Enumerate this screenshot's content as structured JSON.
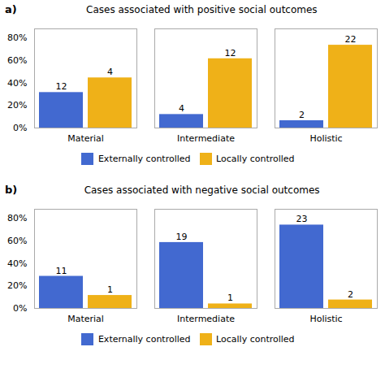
{
  "chart_data": [
    {
      "type": "bar",
      "title": "Cases associated with positive social outcomes",
      "annotations": [
        "a)"
      ],
      "categories": [
        "Material",
        "Intermediate",
        "Holistic"
      ],
      "series": [
        {
          "name": "Externally controlled",
          "values": [
            0.315,
            0.12,
            0.065
          ],
          "counts": [
            12,
            4,
            2
          ]
        },
        {
          "name": "Locally controlled",
          "values": [
            0.445,
            0.615,
            0.735
          ],
          "counts": [
            4,
            12,
            22
          ]
        }
      ],
      "ylim": [
        0,
        0.88
      ],
      "yticks": [
        {
          "value": 0,
          "label": "0%"
        },
        {
          "value": 0.2,
          "label": "20%"
        },
        {
          "value": 0.4,
          "label": "40%"
        },
        {
          "value": 0.6,
          "label": "60%"
        },
        {
          "value": 0.8,
          "label": "80%"
        }
      ],
      "grid": false,
      "legend": "bottom"
    },
    {
      "type": "bar",
      "title": "Cases associated with negative social outcomes",
      "annotations": [
        "b)"
      ],
      "categories": [
        "Material",
        "Intermediate",
        "Holistic"
      ],
      "series": [
        {
          "name": "Externally controlled",
          "values": [
            0.285,
            0.585,
            0.74
          ],
          "counts": [
            11,
            19,
            23
          ]
        },
        {
          "name": "Locally controlled",
          "values": [
            0.115,
            0.04,
            0.075
          ],
          "counts": [
            1,
            1,
            2
          ]
        }
      ],
      "ylim": [
        0,
        0.88
      ],
      "yticks": [
        {
          "value": 0,
          "label": "0%"
        },
        {
          "value": 0.2,
          "label": "20%"
        },
        {
          "value": 0.4,
          "label": "40%"
        },
        {
          "value": 0.6,
          "label": "60%"
        },
        {
          "value": 0.8,
          "label": "80%"
        }
      ],
      "grid": false,
      "legend": "bottom"
    }
  ]
}
